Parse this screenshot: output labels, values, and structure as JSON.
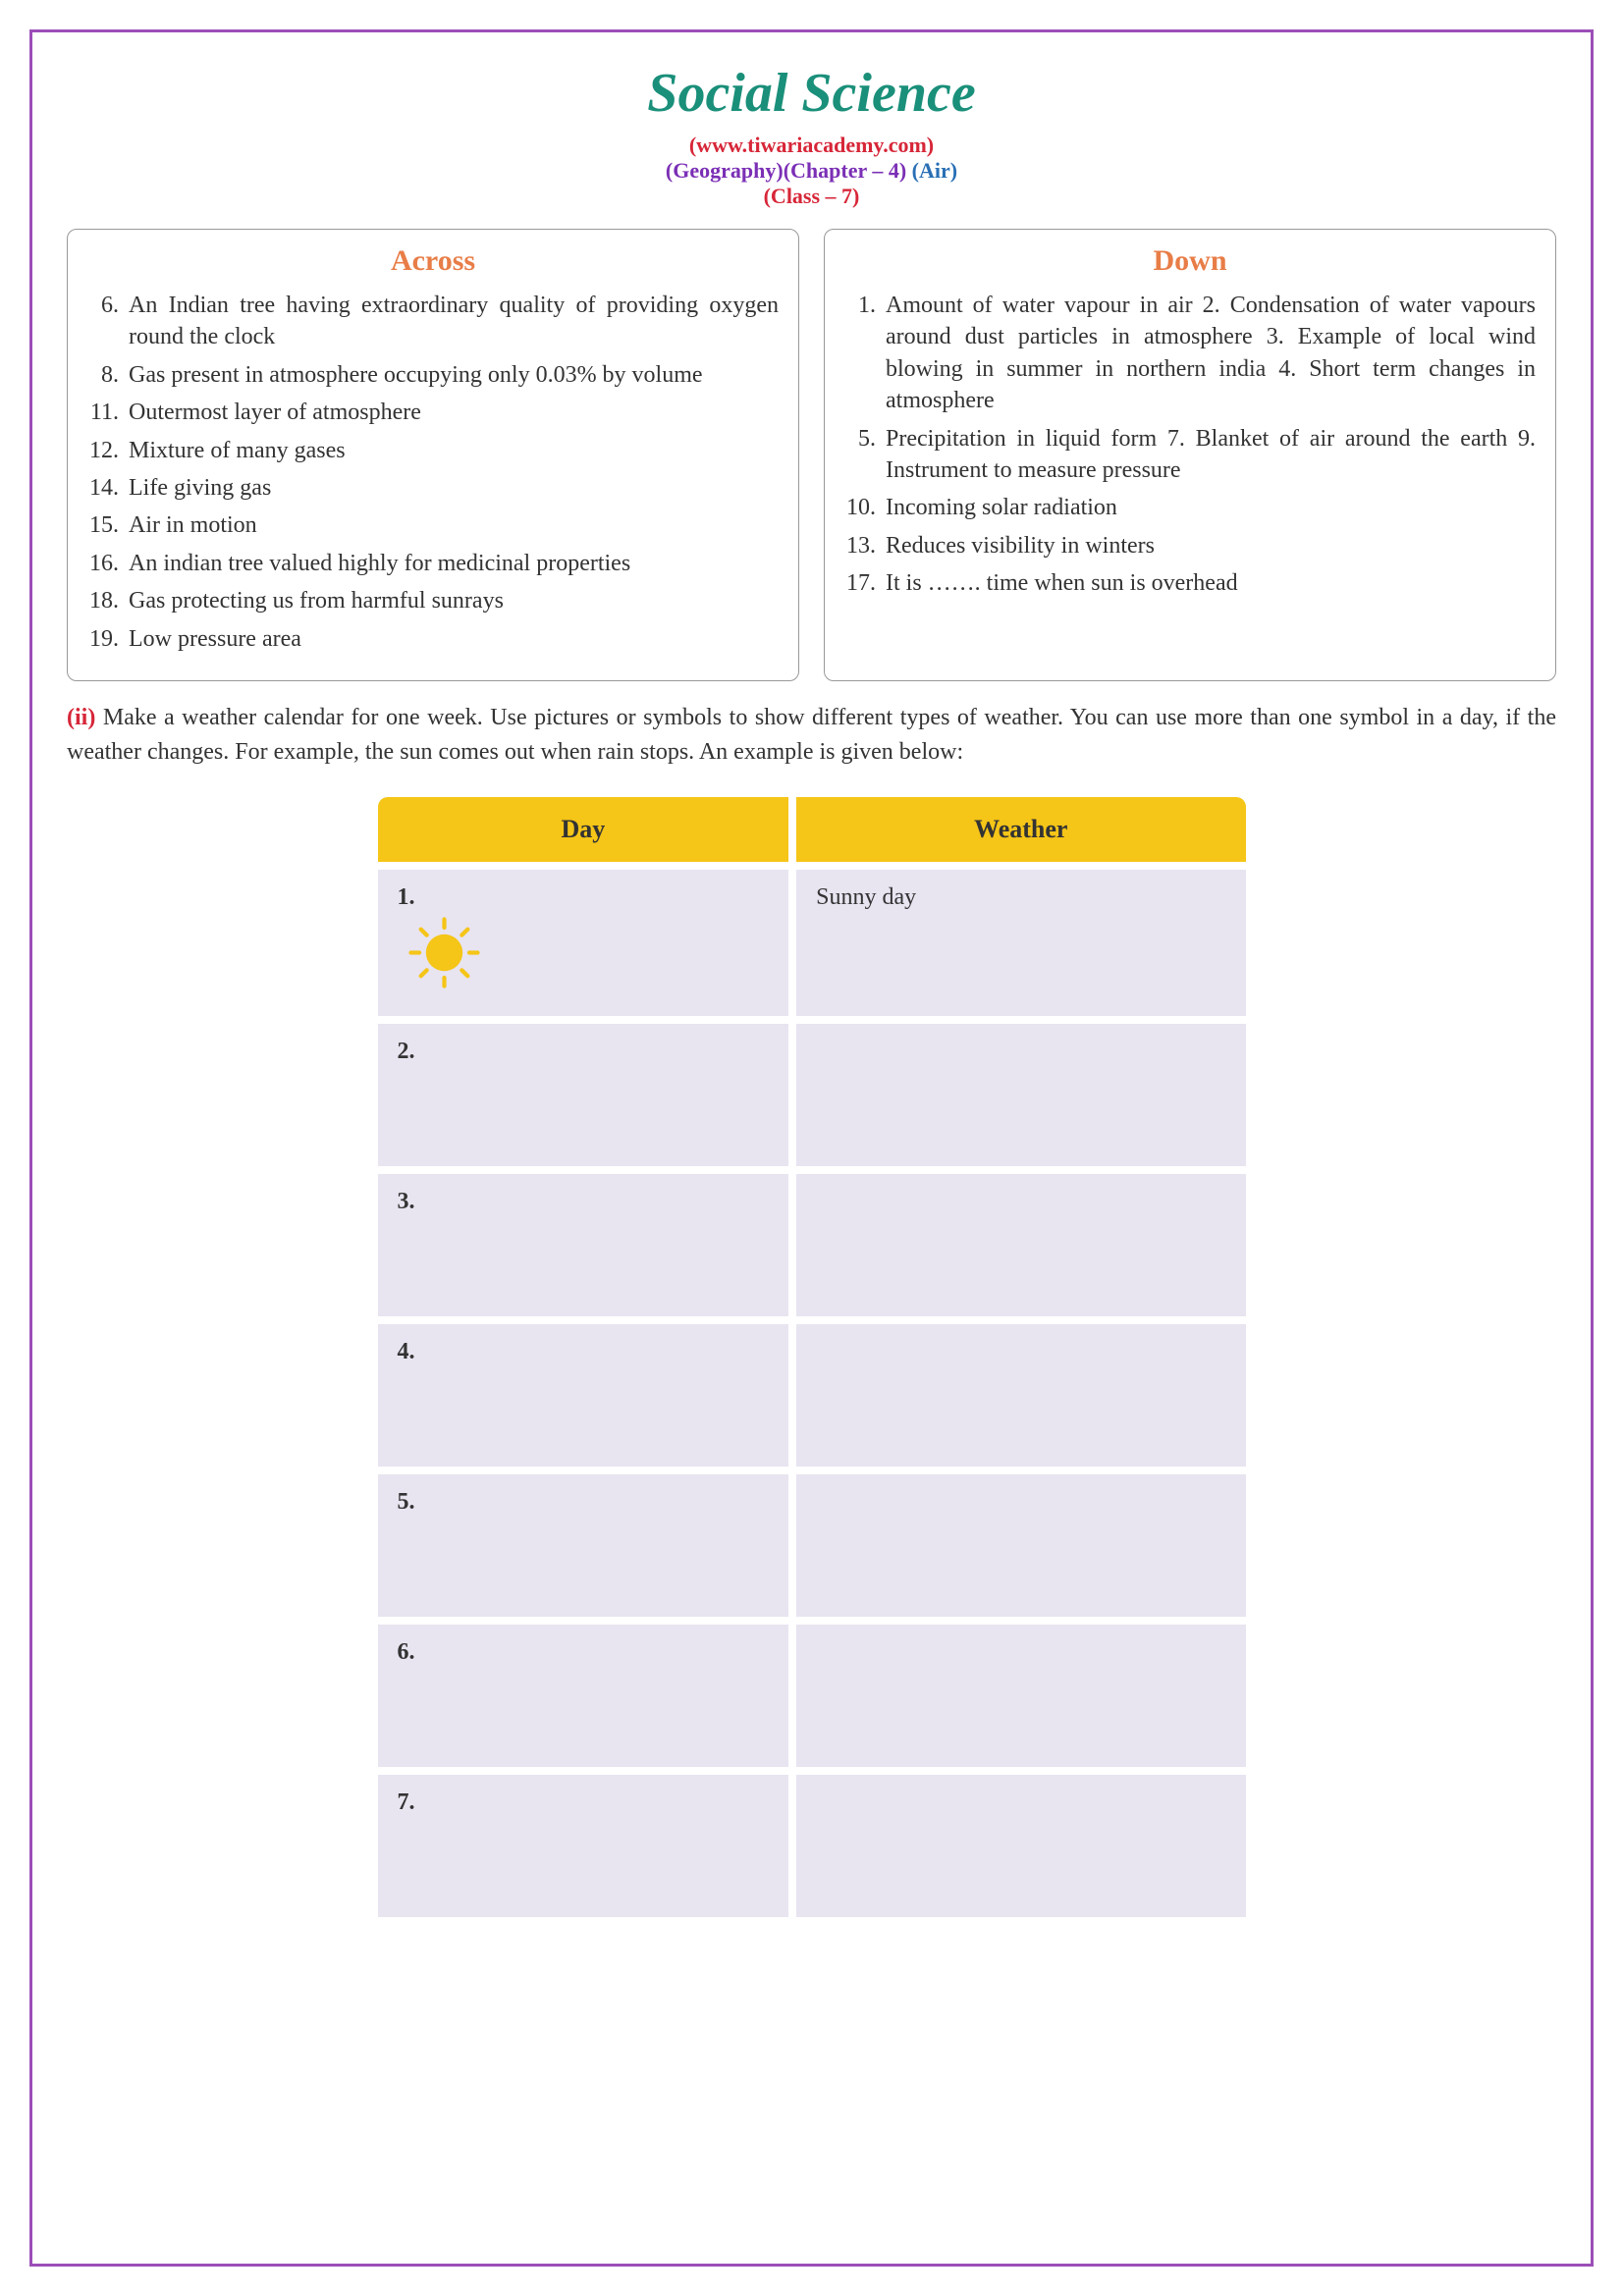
{
  "header": {
    "title": "Social Science",
    "url": "(www.tiwariacademy.com)",
    "geography": "(Geography)",
    "chapter": "(Chapter – 4)",
    "air": "(Air)",
    "class": "(Class – 7)"
  },
  "across": {
    "title": "Across",
    "items": [
      {
        "num": "6.",
        "text": "An Indian tree having extraordinary quality of providing oxygen round the clock"
      },
      {
        "num": "8.",
        "text": "Gas present in atmosphere occupying only 0.03% by volume"
      },
      {
        "num": "11.",
        "text": "Outermost layer of atmosphere"
      },
      {
        "num": "12.",
        "text": "Mixture of many gases"
      },
      {
        "num": "14.",
        "text": "Life giving gas"
      },
      {
        "num": "15.",
        "text": "Air in motion"
      },
      {
        "num": "16.",
        "text": "An indian tree valued highly for medicinal properties"
      },
      {
        "num": "18.",
        "text": "Gas protecting us from harmful sunrays"
      },
      {
        "num": "19.",
        "text": "Low pressure area"
      }
    ]
  },
  "down": {
    "title": "Down",
    "items": [
      {
        "num": "1.",
        "text": "Amount of water vapour in air 2. Condensation of water vapours around dust particles in atmosphere 3. Example of local wind blowing in summer in northern india 4. Short term changes in atmosphere"
      },
      {
        "num": "5.",
        "text": "Precipitation in liquid form 7. Blanket of air around the earth 9. Instrument to measure pressure"
      },
      {
        "num": "10.",
        "text": "Incoming solar radiation"
      },
      {
        "num": "13.",
        "text": "Reduces visibility in winters"
      },
      {
        "num": "17.",
        "text": "It is ……. time when sun is overhead"
      }
    ]
  },
  "instructions": {
    "marker": "(ii)",
    "text": " Make a weather calendar for one week. Use pictures or symbols to show different types of weather. You can use more than one symbol in a day, if the weather changes. For example, the sun comes out when rain stops. An example is given below:"
  },
  "table": {
    "headers": [
      "Day",
      "Weather"
    ],
    "rows": [
      {
        "num": "1.",
        "hasIcon": true,
        "weather": "Sunny day"
      },
      {
        "num": "2.",
        "hasIcon": false,
        "weather": ""
      },
      {
        "num": "3.",
        "hasIcon": false,
        "weather": ""
      },
      {
        "num": "4.",
        "hasIcon": false,
        "weather": ""
      },
      {
        "num": "5.",
        "hasIcon": false,
        "weather": ""
      },
      {
        "num": "6.",
        "hasIcon": false,
        "weather": ""
      },
      {
        "num": "7.",
        "hasIcon": false,
        "weather": ""
      }
    ],
    "header_bg": "#f5c518",
    "cell_bg": "#e8e4f0"
  },
  "colors": {
    "border": "#9b4fb8",
    "title": "#1a8f7a",
    "red": "#d72638",
    "purple": "#7b2fb5",
    "blue": "#2a6fb5",
    "col_title": "#e87d47",
    "sun": "#f5c518"
  }
}
